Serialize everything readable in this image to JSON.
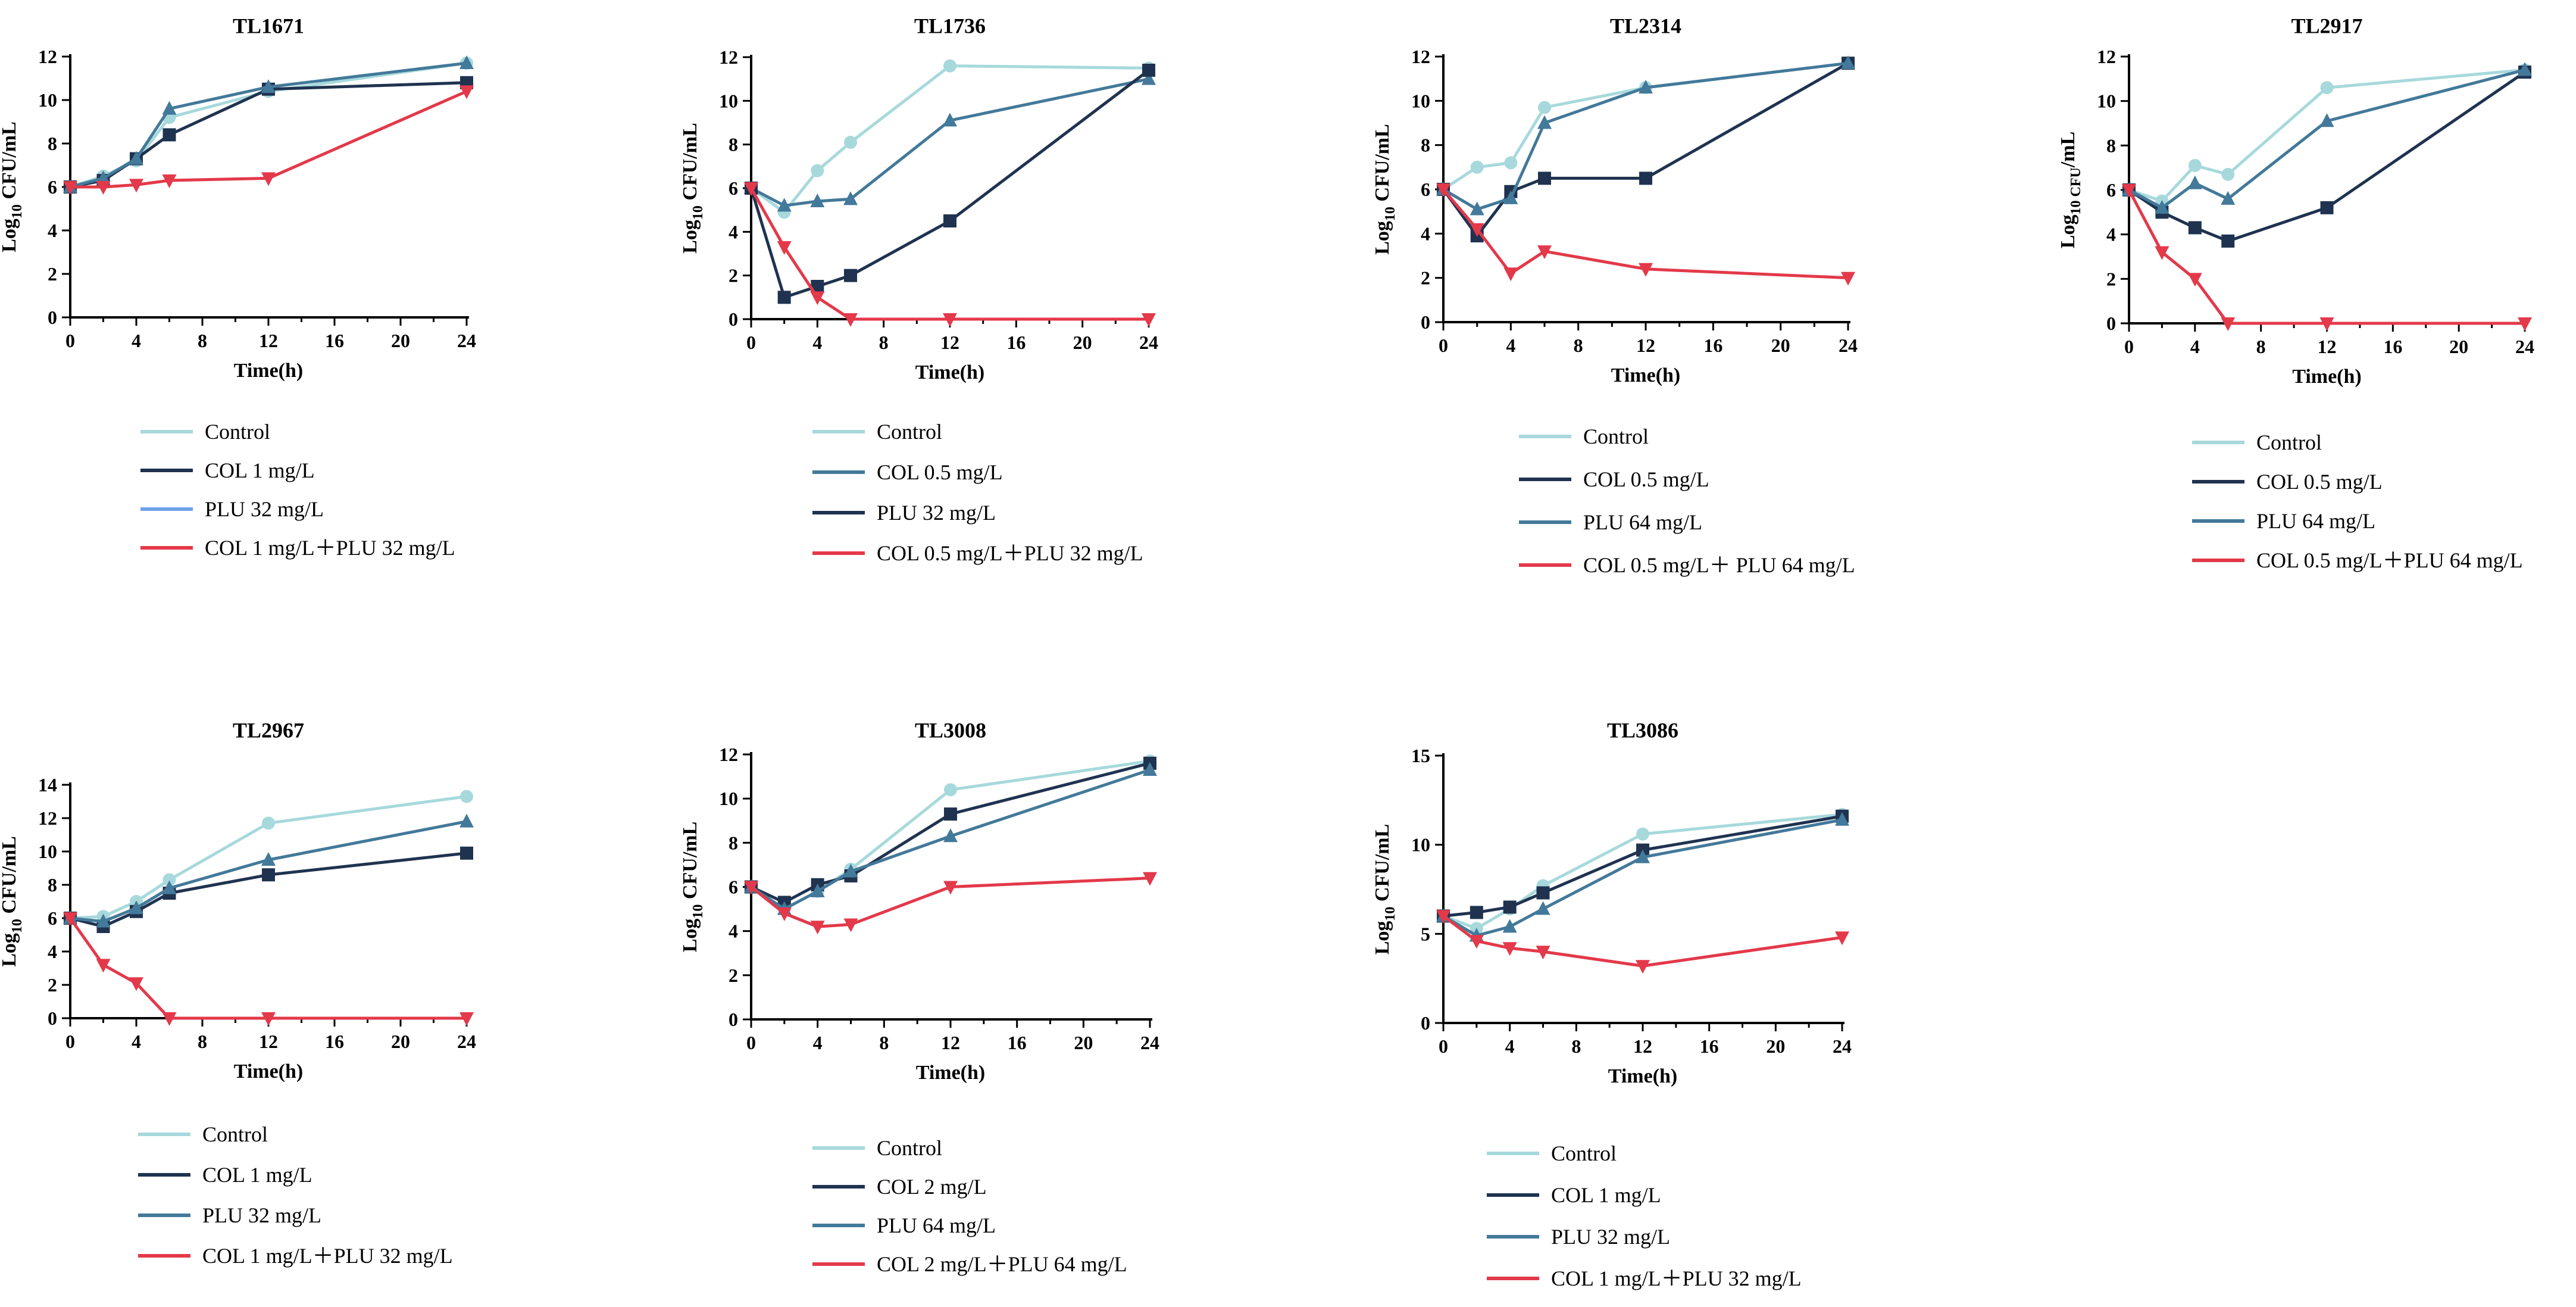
{
  "figure": {
    "colors": {
      "control": "#a7d9dc",
      "col": "#1f3350",
      "plu_blue": "#6fa1ea",
      "plu_steel": "#43799a",
      "combo": "#e3394a",
      "axis": "#000000"
    }
  },
  "chart_data": [
    {
      "type": "line",
      "title": "TL1671",
      "xlabel": "Time(h)",
      "ylabel": [
        "Log",
        "10",
        " CFU/mL"
      ],
      "xlim": [
        0,
        24
      ],
      "ylim": [
        0,
        12
      ],
      "xticks": [
        "0",
        "4",
        "8",
        "12",
        "16",
        "20",
        "24"
      ],
      "yticks": [
        "0",
        "2",
        "4",
        "6",
        "8",
        "10",
        "12"
      ],
      "series": [
        {
          "name": "Control",
          "color": "#a7d9dc",
          "marker": "circle",
          "x": [
            0,
            2,
            4,
            6,
            12,
            24
          ],
          "y": [
            6.0,
            6.5,
            7.2,
            9.2,
            10.4,
            11.7
          ]
        },
        {
          "name": "COL 1 mg/L",
          "color": "#1f3350",
          "marker": "square",
          "x": [
            0,
            2,
            4,
            6,
            12,
            24
          ],
          "y": [
            6.0,
            6.3,
            7.3,
            8.4,
            10.5,
            10.8
          ]
        },
        {
          "name": "PLU  32 mg/L",
          "color": "#43799a",
          "legend_color": "#6fa1ea",
          "marker": "triangle",
          "x": [
            0,
            2,
            4,
            6,
            12,
            24
          ],
          "y": [
            6.0,
            6.4,
            7.3,
            9.6,
            10.6,
            11.7
          ]
        },
        {
          "name": "COL 1 mg/L＋PLU 32 mg/L",
          "color": "#e3394a",
          "marker": "tri-down",
          "x": [
            0,
            2,
            4,
            6,
            12,
            24
          ],
          "y": [
            6.0,
            6.0,
            6.1,
            6.3,
            6.4,
            10.4
          ]
        }
      ]
    },
    {
      "type": "line",
      "title": "TL1736",
      "xlabel": "Time(h)",
      "ylabel": [
        "Log",
        "10",
        " CFU/mL"
      ],
      "xlim": [
        0,
        24
      ],
      "ylim": [
        0,
        12
      ],
      "xticks": [
        "0",
        "4",
        "8",
        "12",
        "16",
        "20",
        "24"
      ],
      "yticks": [
        "0",
        "2",
        "4",
        "6",
        "8",
        "10",
        "12"
      ],
      "series": [
        {
          "name": "Control",
          "color": "#a7d9dc",
          "marker": "circle",
          "x": [
            0,
            2,
            4,
            6,
            12,
            24
          ],
          "y": [
            6.0,
            4.9,
            6.8,
            8.1,
            11.6,
            11.5
          ]
        },
        {
          "name": "COL 0.5 mg/L",
          "color": "#43799a",
          "marker": "triangle",
          "x": [
            0,
            2,
            4,
            6,
            12,
            24
          ],
          "y": [
            6.0,
            5.2,
            5.4,
            5.5,
            9.1,
            11.0
          ]
        },
        {
          "name": "PLU 32 mg/L",
          "color": "#1f3350",
          "marker": "square",
          "x": [
            0,
            2,
            4,
            6,
            12,
            24
          ],
          "y": [
            6.0,
            1.0,
            1.5,
            2.0,
            4.5,
            11.4
          ]
        },
        {
          "name": "COL 0.5 mg/L＋PLU 32 mg/L",
          "color": "#e3394a",
          "marker": "tri-down",
          "x": [
            0,
            2,
            4,
            6,
            12,
            24
          ],
          "y": [
            6.0,
            3.3,
            1.0,
            0.0,
            0.0,
            0.0
          ]
        }
      ]
    },
    {
      "type": "line",
      "title": "TL2314",
      "xlabel": "Time(h)",
      "ylabel": [
        "Log",
        "10",
        " CFU/mL"
      ],
      "xlim": [
        0,
        24
      ],
      "ylim": [
        0,
        12
      ],
      "xticks": [
        "0",
        "4",
        "8",
        "12",
        "16",
        "20",
        "24"
      ],
      "yticks": [
        "0",
        "2",
        "4",
        "6",
        "8",
        "10",
        "12"
      ],
      "series": [
        {
          "name": "Control",
          "color": "#a7d9dc",
          "marker": "circle",
          "x": [
            0,
            2,
            4,
            6,
            12,
            24
          ],
          "y": [
            6.0,
            7.0,
            7.2,
            9.7,
            10.6,
            11.7
          ]
        },
        {
          "name": "COL 0.5 mg/L",
          "color": "#1f3350",
          "marker": "square",
          "x": [
            0,
            2,
            4,
            6,
            12,
            24
          ],
          "y": [
            6.0,
            3.9,
            5.9,
            6.5,
            6.5,
            11.7
          ]
        },
        {
          "name": "PLU 64 mg/L",
          "color": "#43799a",
          "marker": "triangle",
          "x": [
            0,
            2,
            4,
            6,
            12,
            24
          ],
          "y": [
            6.0,
            5.1,
            5.6,
            9.0,
            10.6,
            11.7
          ]
        },
        {
          "name": "COL 0.5 mg/L＋ PLU 64 mg/L",
          "color": "#e3394a",
          "marker": "tri-down",
          "x": [
            0,
            2,
            4,
            6,
            12,
            24
          ],
          "y": [
            6.0,
            4.2,
            2.2,
            3.2,
            2.4,
            2.0
          ]
        }
      ]
    },
    {
      "type": "line",
      "title": "TL2917",
      "xlabel": "Time(h)",
      "ylabel": [
        "Log",
        "10 CFU",
        "/mL"
      ],
      "xlim": [
        0,
        24
      ],
      "ylim": [
        0,
        12
      ],
      "xticks": [
        "0",
        "4",
        "8",
        "12",
        "16",
        "20",
        "24"
      ],
      "yticks": [
        "0",
        "2",
        "4",
        "6",
        "8",
        "10",
        "12"
      ],
      "series": [
        {
          "name": "Control",
          "color": "#a7d9dc",
          "marker": "circle",
          "x": [
            0,
            2,
            4,
            6,
            12,
            24
          ],
          "y": [
            6.0,
            5.5,
            7.1,
            6.7,
            10.6,
            11.4
          ]
        },
        {
          "name": "COL 0.5 mg/L",
          "color": "#1f3350",
          "marker": "square",
          "x": [
            0,
            2,
            4,
            6,
            12,
            24
          ],
          "y": [
            6.0,
            5.0,
            4.3,
            3.7,
            5.2,
            11.3
          ]
        },
        {
          "name": "PLU 64 mg/L",
          "color": "#43799a",
          "marker": "triangle",
          "x": [
            0,
            2,
            4,
            6,
            12,
            24
          ],
          "y": [
            6.0,
            5.2,
            6.3,
            5.6,
            9.1,
            11.4
          ]
        },
        {
          "name": "COL 0.5 mg/L＋PLU 64 mg/L",
          "color": "#e3394a",
          "marker": "tri-down",
          "x": [
            0,
            2,
            4,
            6,
            12,
            24
          ],
          "y": [
            6.0,
            3.2,
            2.0,
            0.0,
            0.0,
            0.0
          ]
        }
      ]
    },
    {
      "type": "line",
      "title": "TL2967",
      "xlabel": "Time(h)",
      "ylabel": [
        "Log",
        "10",
        " CFU/mL"
      ],
      "xlim": [
        0,
        24
      ],
      "ylim": [
        0,
        14
      ],
      "xticks": [
        "0",
        "4",
        "8",
        "12",
        "16",
        "20",
        "24"
      ],
      "yticks": [
        "0",
        "2",
        "4",
        "6",
        "8",
        "10",
        "12",
        "14"
      ],
      "series": [
        {
          "name": "Control",
          "color": "#a7d9dc",
          "marker": "circle",
          "x": [
            0,
            2,
            4,
            6,
            12,
            24
          ],
          "y": [
            6.0,
            6.1,
            7.0,
            8.3,
            11.7,
            13.3
          ]
        },
        {
          "name": "COL 1 mg/L",
          "color": "#1f3350",
          "marker": "square",
          "x": [
            0,
            2,
            4,
            6,
            12,
            24
          ],
          "y": [
            6.0,
            5.5,
            6.4,
            7.5,
            8.6,
            9.9
          ]
        },
        {
          "name": "PLU 32 mg/L",
          "color": "#43799a",
          "marker": "triangle",
          "x": [
            0,
            2,
            4,
            6,
            12,
            24
          ],
          "y": [
            6.0,
            5.8,
            6.6,
            7.8,
            9.5,
            11.8
          ]
        },
        {
          "name": "COL 1 mg/L＋PLU 32 mg/L",
          "color": "#e3394a",
          "marker": "tri-down",
          "x": [
            0,
            2,
            4,
            6,
            12,
            24
          ],
          "y": [
            6.0,
            3.2,
            2.1,
            0.0,
            0.0,
            0.0
          ]
        }
      ]
    },
    {
      "type": "line",
      "title": "TL3008",
      "xlabel": "Time(h)",
      "ylabel": [
        "Log",
        "10",
        " CFU/mL"
      ],
      "xlim": [
        0,
        24
      ],
      "ylim": [
        0,
        12
      ],
      "xticks": [
        "0",
        "4",
        "8",
        "12",
        "16",
        "20",
        "24"
      ],
      "yticks": [
        "0",
        "2",
        "4",
        "6",
        "8",
        "10",
        "12"
      ],
      "series": [
        {
          "name": "Control",
          "color": "#a7d9dc",
          "marker": "circle",
          "x": [
            0,
            2,
            4,
            6,
            12,
            24
          ],
          "y": [
            6.0,
            5.0,
            5.8,
            6.8,
            10.4,
            11.7
          ]
        },
        {
          "name": "COL 2 mg/L",
          "color": "#1f3350",
          "marker": "square",
          "x": [
            0,
            2,
            4,
            6,
            12,
            24
          ],
          "y": [
            6.0,
            5.3,
            6.1,
            6.5,
            9.3,
            11.6
          ]
        },
        {
          "name": "PLU 64 mg/L",
          "color": "#43799a",
          "marker": "triangle",
          "x": [
            0,
            2,
            4,
            6,
            12,
            24
          ],
          "y": [
            6.0,
            5.0,
            5.8,
            6.7,
            8.3,
            11.3
          ]
        },
        {
          "name": "COL 2 mg/L＋PLU 64 mg/L",
          "color": "#e3394a",
          "marker": "tri-down",
          "x": [
            0,
            2,
            4,
            6,
            12,
            24
          ],
          "y": [
            6.0,
            4.8,
            4.2,
            4.3,
            6.0,
            6.4
          ]
        }
      ]
    },
    {
      "type": "line",
      "title": "TL3086",
      "xlabel": "Time(h)",
      "ylabel": [
        "Log",
        "10",
        " CFU/mL"
      ],
      "xlim": [
        0,
        24
      ],
      "ylim": [
        0,
        15
      ],
      "xticks": [
        "0",
        "4",
        "8",
        "12",
        "16",
        "20",
        "24"
      ],
      "yticks": [
        "0",
        "5",
        "10",
        "15"
      ],
      "series": [
        {
          "name": "Control",
          "color": "#a7d9dc",
          "marker": "circle",
          "x": [
            0,
            2,
            4,
            6,
            12,
            24
          ],
          "y": [
            6.0,
            5.3,
            6.4,
            7.7,
            10.6,
            11.7
          ]
        },
        {
          "name": "COL 1 mg/L",
          "color": "#1f3350",
          "marker": "square",
          "x": [
            0,
            2,
            4,
            6,
            12,
            24
          ],
          "y": [
            6.0,
            6.2,
            6.5,
            7.3,
            9.7,
            11.6
          ]
        },
        {
          "name": "PLU 32 mg/L",
          "color": "#43799a",
          "marker": "triangle",
          "x": [
            0,
            2,
            4,
            6,
            12,
            24
          ],
          "y": [
            6.0,
            4.9,
            5.4,
            6.4,
            9.3,
            11.4
          ]
        },
        {
          "name": "COL 1 mg/L＋PLU 32 mg/L",
          "color": "#e3394a",
          "marker": "tri-down",
          "x": [
            0,
            2,
            4,
            6,
            12,
            24
          ],
          "y": [
            6.0,
            4.6,
            4.2,
            4.0,
            3.2,
            4.8
          ]
        }
      ]
    }
  ]
}
